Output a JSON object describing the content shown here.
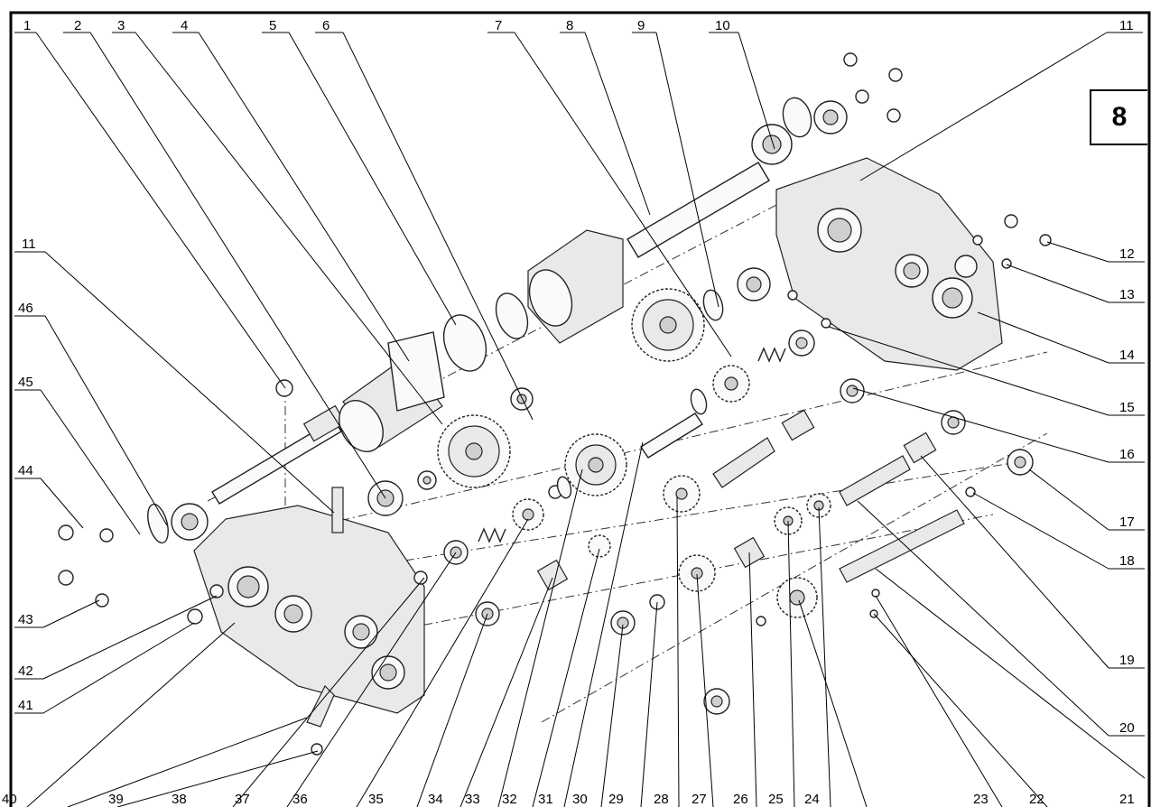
{
  "page_badge": "8",
  "callouts": {
    "top": [
      "1",
      "2",
      "3",
      "4",
      "5",
      "6",
      "7",
      "8",
      "9",
      "10",
      "11"
    ],
    "left": [
      "11",
      "46",
      "45",
      "44",
      "43",
      "42",
      "41"
    ],
    "right": [
      "12",
      "13",
      "14",
      "15",
      "16",
      "17",
      "18",
      "19",
      "20"
    ],
    "bottom": [
      "40",
      "39",
      "38",
      "37",
      "36",
      "35",
      "34",
      "33",
      "32",
      "31",
      "30",
      "29",
      "28",
      "27",
      "26",
      "25",
      "24",
      "23",
      "22",
      "21"
    ]
  }
}
